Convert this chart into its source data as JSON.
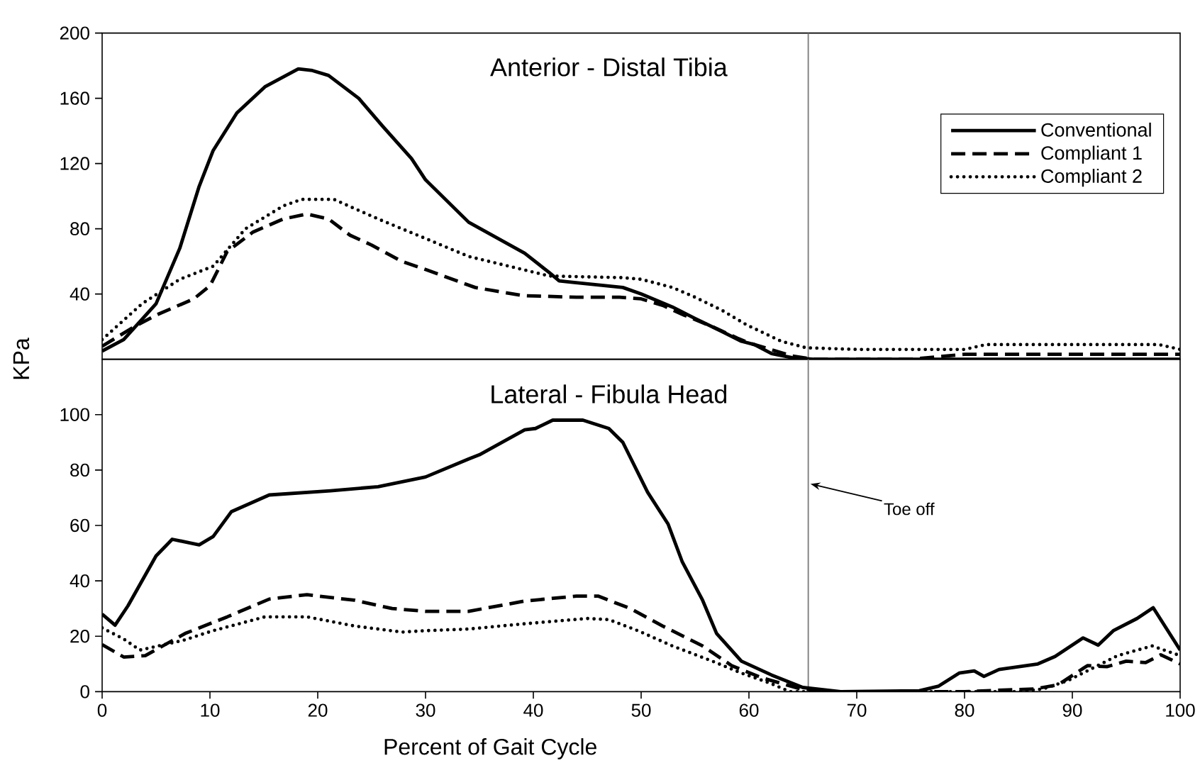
{
  "chart_data": [
    {
      "type": "line",
      "title": "Anterior - Distal Tibia",
      "ylabel": "KPa",
      "xlim": [
        0,
        100
      ],
      "ylim": [
        0,
        200
      ],
      "yticks": [
        40,
        80,
        120,
        160,
        200
      ],
      "tick_labels": "y",
      "legend": "right",
      "ref_lines": [
        {
          "axis": "x",
          "value": 65.5,
          "color": "#808080"
        }
      ],
      "series": [
        {
          "name": "Conventional",
          "color": "#000000",
          "line_style": "solid",
          "x": [
            0,
            2,
            5,
            7.2,
            9,
            10.3,
            12.5,
            15.1,
            18.2,
            19.5,
            21,
            23.8,
            26,
            28.7,
            30,
            34,
            39.2,
            41.5,
            42.4,
            43.8,
            48.3,
            50,
            52.9,
            55,
            57.5,
            59.3,
            60.5,
            62.1,
            64,
            66,
            70,
            80,
            90,
            100
          ],
          "values": [
            5,
            12,
            34,
            68,
            106,
            128,
            151,
            167,
            178,
            177,
            174,
            160,
            143,
            123,
            110,
            84,
            65,
            53,
            48,
            47,
            44,
            40,
            32,
            25,
            17,
            11,
            9,
            3.5,
            1,
            0,
            0,
            0,
            0,
            0
          ]
        },
        {
          "name": "Compliant 1",
          "color": "#000000",
          "line_style": "dashed",
          "x": [
            0,
            3,
            5,
            8.5,
            10,
            11.6,
            14,
            16.8,
            19,
            21,
            23,
            25,
            27.8,
            30,
            34.6,
            39,
            44,
            48,
            50,
            52,
            54,
            56.6,
            58.9,
            60,
            62,
            64,
            66,
            75,
            80,
            90,
            100
          ],
          "values": [
            8,
            20,
            27,
            37,
            45,
            66,
            78,
            86,
            89,
            86,
            76,
            70,
            60,
            55,
            44,
            39,
            38,
            38,
            37,
            33,
            27,
            20,
            13,
            10,
            6,
            2,
            0,
            0,
            3,
            3,
            3
          ]
        },
        {
          "name": "Compliant 2",
          "color": "#000000",
          "line_style": "dotted",
          "x": [
            0,
            1,
            3.7,
            7.2,
            10.3,
            13.3,
            16.8,
            18.5,
            21.5,
            25.6,
            30,
            34,
            41.5,
            48.3,
            50,
            52.9,
            55,
            57.5,
            59.8,
            63,
            65.3,
            70,
            80,
            82,
            90,
            98,
            100
          ],
          "values": [
            12,
            18,
            34,
            49,
            57,
            80,
            94,
            98,
            98,
            86,
            74,
            63,
            51,
            50,
            49,
            44,
            38,
            30,
            21,
            11,
            7,
            6,
            6,
            9,
            9,
            9,
            6
          ]
        }
      ]
    },
    {
      "type": "line",
      "title": "Lateral - Fibula Head",
      "xlabel": "Percent of Gait Cycle",
      "xlim": [
        0,
        100
      ],
      "xticks": [
        0,
        10,
        20,
        30,
        40,
        50,
        60,
        70,
        80,
        90,
        100
      ],
      "ylim": [
        0,
        120
      ],
      "yticks": [
        0,
        20,
        40,
        60,
        80,
        100
      ],
      "ref_lines": [
        {
          "axis": "x",
          "value": 65.5,
          "color": "#808080"
        }
      ],
      "annotations": [
        {
          "text": "Toe off",
          "x": 65.5,
          "y": 75
        }
      ],
      "series": [
        {
          "color": "#000000",
          "line_style": "solid",
          "x": [
            0,
            1.2,
            2.4,
            5,
            6.5,
            9,
            10.3,
            12,
            15.5,
            21.2,
            25.6,
            30,
            34,
            35,
            39.2,
            40.2,
            41.8,
            44.6,
            47,
            48.3,
            50.6,
            52.5,
            53.8,
            55.7,
            57,
            59.3,
            62.1,
            65,
            68.5,
            75.8,
            77.6,
            79.5,
            80.9,
            81.8,
            83.2,
            86.8,
            88.4,
            91,
            92.4,
            93.8,
            96,
            97.5,
            100
          ],
          "values": [
            28,
            24,
            31,
            49,
            55,
            53,
            56,
            65,
            71,
            72.5,
            74,
            77.5,
            84,
            85.5,
            94.5,
            95,
            98,
            98,
            95,
            90,
            72,
            60.5,
            47,
            33,
            21,
            11,
            6,
            1.5,
            0,
            0.3,
            2,
            6.7,
            7.5,
            5.5,
            8,
            10,
            12.7,
            19.4,
            16.8,
            22,
            26.4,
            30.3,
            15
          ]
        },
        {
          "color": "#000000",
          "line_style": "dashed",
          "x": [
            0,
            2,
            4,
            7.7,
            11.6,
            15.5,
            19,
            23.4,
            26.9,
            30,
            34,
            39.2,
            44,
            46,
            49,
            52,
            55.7,
            58.4,
            61.2,
            64.8,
            68,
            80,
            86.5,
            88.7,
            91.4,
            93.2,
            95,
            96.8,
            98.2,
            100
          ],
          "values": [
            17,
            12.5,
            13,
            21,
            27,
            33.4,
            35,
            33,
            30,
            29,
            29,
            32.7,
            34.5,
            34.5,
            30,
            23.7,
            16.5,
            9.4,
            5,
            1,
            0,
            0,
            1,
            2.5,
            9.4,
            9,
            11,
            10.5,
            13.3,
            10
          ]
        },
        {
          "color": "#000000",
          "line_style": "dotted",
          "x": [
            0,
            2,
            3.5,
            7.5,
            10.3,
            15.1,
            19,
            23.4,
            27.8,
            30,
            34,
            39.2,
            45,
            47,
            49.7,
            52.9,
            56.6,
            59.3,
            62,
            63.8,
            70,
            85,
            87.3,
            89.6,
            94.2,
            97.4,
            100
          ],
          "values": [
            23,
            19,
            15,
            18.5,
            22,
            27,
            27,
            23.7,
            21.5,
            22,
            22.6,
            24.5,
            26.4,
            26,
            22,
            16.5,
            11,
            6.7,
            3,
            0,
            0,
            0,
            1,
            4,
            13,
            16.5,
            13
          ]
        }
      ]
    }
  ]
}
